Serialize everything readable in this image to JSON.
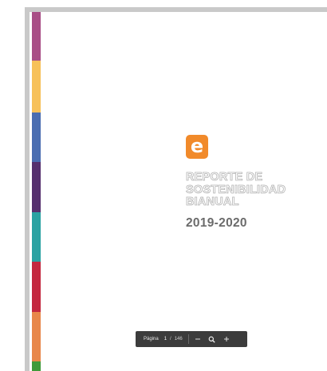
{
  "document": {
    "logo_letter": "e",
    "title_lines": [
      "REPORTE DE",
      "SOSTENIBILIDAD",
      "BIANUAL"
    ],
    "years": "2019-2020",
    "stripe_colors": [
      "#a94e86",
      "#f7c15a",
      "#4a6db1",
      "#56306e",
      "#2aa2a2",
      "#c4283f",
      "#e8874a",
      "#3f9a3a"
    ],
    "logo_color": "#f18a2a"
  },
  "toolbar": {
    "page_label": "Página",
    "current_page": "1",
    "separator": "/",
    "total_pages": "146",
    "zoom_out_icon": "minus-icon",
    "zoom_icon": "magnifier-icon",
    "zoom_in_icon": "plus-icon"
  }
}
